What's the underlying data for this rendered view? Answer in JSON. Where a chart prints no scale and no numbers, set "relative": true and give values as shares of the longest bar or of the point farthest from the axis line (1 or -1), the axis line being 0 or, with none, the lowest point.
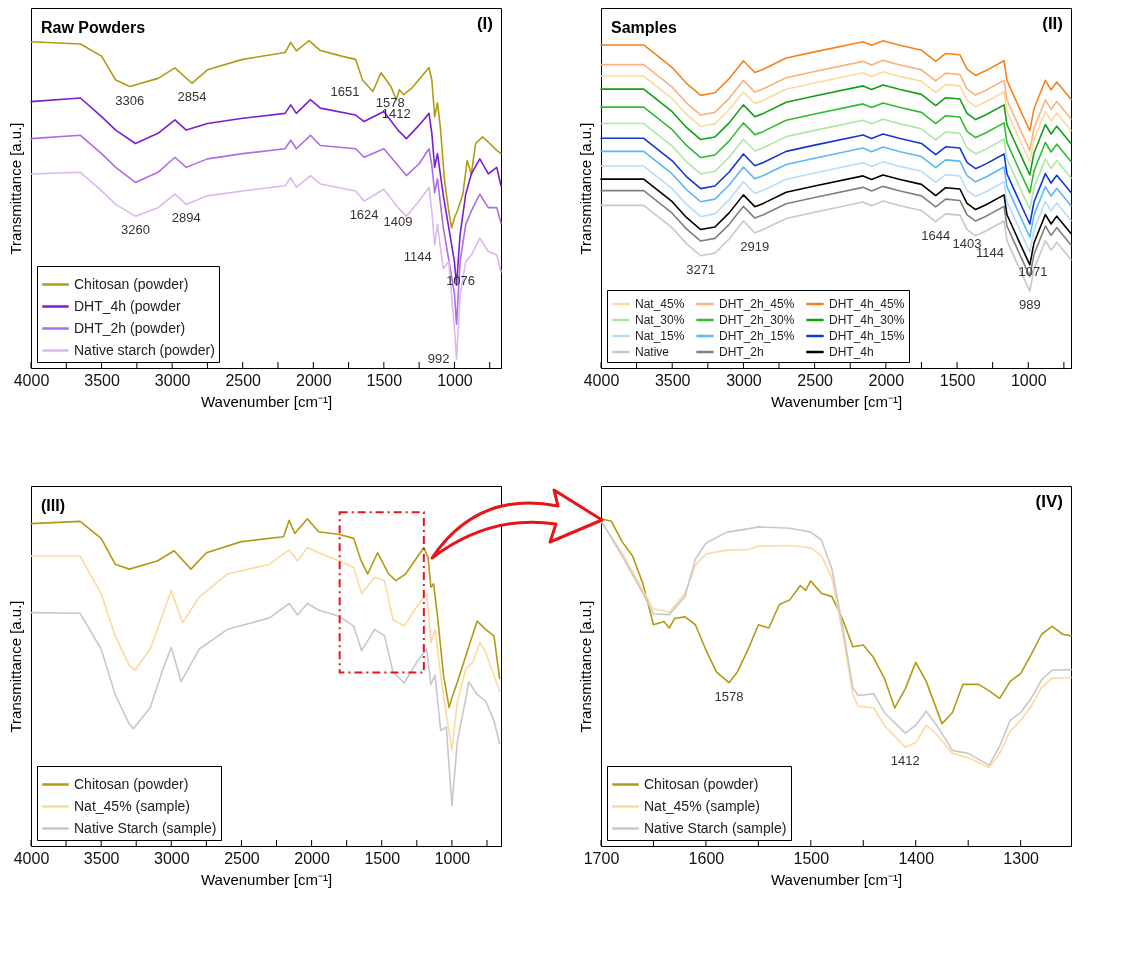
{
  "chart_data": [
    {
      "type": "line",
      "title": "Raw Powders",
      "xlabel": "Wavenumber [cm⁻¹]",
      "ylabel": "Transmittance [a.u.]",
      "relative": true,
      "legend": "bottom left",
      "line_style": "solid",
      "xlim": [
        4000,
        670
      ],
      "xticks": [
        4000,
        {
          "value": 3750,
          "label": null
        },
        3500,
        {
          "value": 3250,
          "label": null
        },
        3000,
        {
          "value": 2750,
          "label": null
        },
        2500,
        {
          "value": 2250,
          "label": null
        },
        2000,
        {
          "value": 1750,
          "label": null
        },
        1500,
        {
          "value": 1250,
          "label": null
        },
        1000,
        {
          "value": 750,
          "label": null
        }
      ],
      "annotations": [
        "(I)",
        {
          "text": "3306",
          "x": 3300,
          "y": 0.86
        },
        {
          "text": "2854",
          "x": 2860,
          "y": 0.87
        },
        {
          "text": "1651",
          "x": 1651,
          "y": 0.88
        },
        {
          "text": "1578",
          "x": 1578,
          "y": 0.845
        },
        {
          "text": "1412",
          "x": 1412,
          "y": 0.82
        },
        {
          "text": "3260",
          "x": 3260,
          "y": 0.464
        },
        {
          "text": "2894",
          "x": 2900,
          "y": 0.5
        },
        {
          "text": "1624",
          "x": 1640,
          "y": 0.51
        },
        {
          "text": "1409",
          "x": 1400,
          "y": 0.49
        },
        {
          "text": "1144",
          "x": 1140,
          "y": 0.376
        },
        {
          "text": "1076",
          "x": 1080,
          "y": 0.304
        },
        {
          "text": "992",
          "x": 985,
          "y": 0.026
        }
      ],
      "series": [
        {
          "name": "Chitosan (powder)",
          "color": "#b39a14",
          "x": [
            4000,
            3650,
            3500,
            3400,
            3300,
            3100,
            2980,
            2860,
            2750,
            2500,
            2200,
            2160,
            2120,
            2030,
            1950,
            1800,
            1700,
            1651,
            1578,
            1520,
            1450,
            1412,
            1390,
            1360,
            1300,
            1230,
            1180,
            1160,
            1140,
            1120,
            1100,
            1070,
            1040,
            1020,
            1000,
            980,
            940,
            910,
            880,
            850,
            800,
            750,
            700,
            670
          ],
          "values": [
            0.997,
            0.99,
            0.953,
            0.88,
            0.86,
            0.885,
            0.917,
            0.87,
            0.911,
            0.943,
            0.964,
            0.995,
            0.969,
            1.0,
            0.97,
            0.953,
            0.943,
            0.88,
            0.845,
            0.902,
            0.86,
            0.82,
            0.85,
            0.835,
            0.856,
            0.892,
            0.918,
            0.88,
            0.768,
            0.81,
            0.737,
            0.572,
            0.479,
            0.428,
            0.459,
            0.479,
            0.531,
            0.634,
            0.593,
            0.686,
            0.706,
            0.686,
            0.665,
            0.655
          ]
        },
        {
          "name": "DHT_4h (powder",
          "color": "#7a1fd0",
          "x": [
            4000,
            3650,
            3500,
            3400,
            3260,
            3100,
            2980,
            2900,
            2750,
            2500,
            2200,
            2160,
            2120,
            2020,
            1950,
            1700,
            1640,
            1500,
            1400,
            1340,
            1250,
            1180,
            1160,
            1140,
            1120,
            1080,
            1040,
            1000,
            985,
            960,
            920,
            880,
            820,
            760,
            700,
            670
          ],
          "values": [
            0.814,
            0.825,
            0.768,
            0.727,
            0.686,
            0.717,
            0.758,
            0.727,
            0.747,
            0.763,
            0.778,
            0.804,
            0.778,
            0.82,
            0.794,
            0.773,
            0.753,
            0.784,
            0.727,
            0.701,
            0.742,
            0.778,
            0.717,
            0.613,
            0.655,
            0.531,
            0.428,
            0.325,
            0.253,
            0.407,
            0.531,
            0.593,
            0.639,
            0.593,
            0.613,
            0.557
          ]
        },
        {
          "name": "DHT_2h (powder)",
          "color": "#b06be6",
          "x": [
            4000,
            3650,
            3500,
            3400,
            3260,
            3100,
            2980,
            2900,
            2750,
            2500,
            2200,
            2160,
            2120,
            2020,
            1950,
            1700,
            1640,
            1500,
            1400,
            1340,
            1250,
            1180,
            1160,
            1140,
            1120,
            1080,
            1040,
            1000,
            985,
            960,
            920,
            880,
            820,
            760,
            700,
            670
          ],
          "values": [
            0.701,
            0.711,
            0.655,
            0.613,
            0.567,
            0.598,
            0.644,
            0.613,
            0.639,
            0.655,
            0.67,
            0.696,
            0.67,
            0.711,
            0.68,
            0.67,
            0.644,
            0.67,
            0.619,
            0.588,
            0.624,
            0.67,
            0.619,
            0.536,
            0.578,
            0.433,
            0.33,
            0.227,
            0.134,
            0.325,
            0.438,
            0.48,
            0.531,
            0.49,
            0.49,
            0.443
          ]
        },
        {
          "name": "Native starch (powder)",
          "color": "#dcb8f2",
          "x": [
            4000,
            3650,
            3500,
            3400,
            3260,
            3100,
            2980,
            2900,
            2750,
            2500,
            2200,
            2160,
            2120,
            2020,
            1950,
            1700,
            1640,
            1500,
            1400,
            1340,
            1250,
            1180,
            1160,
            1140,
            1120,
            1080,
            1040,
            1000,
            985,
            960,
            920,
            880,
            820,
            760,
            700,
            670
          ],
          "values": [
            0.593,
            0.598,
            0.541,
            0.5,
            0.464,
            0.49,
            0.531,
            0.5,
            0.526,
            0.541,
            0.557,
            0.582,
            0.552,
            0.588,
            0.562,
            0.541,
            0.51,
            0.546,
            0.49,
            0.464,
            0.51,
            0.552,
            0.479,
            0.376,
            0.438,
            0.304,
            0.325,
            0.119,
            0.026,
            0.222,
            0.325,
            0.345,
            0.397,
            0.356,
            0.345,
            0.294
          ]
        }
      ]
    },
    {
      "type": "line",
      "title": "Samples",
      "xlabel": "Wavenumber [cm⁻¹]",
      "ylabel": "Transmittance [a.u.]",
      "relative": true,
      "legend": "bottom left",
      "line_style": "solid",
      "xlim": [
        4000,
        700
      ],
      "xticks": [
        4000,
        {
          "value": 3750,
          "label": null
        },
        3500,
        {
          "value": 3250,
          "label": null
        },
        3000,
        {
          "value": 2750,
          "label": null
        },
        2500,
        {
          "value": 2250,
          "label": null
        },
        2000,
        {
          "value": 1750,
          "label": null
        },
        1500,
        {
          "value": 1250,
          "label": null
        },
        1000,
        {
          "value": 750,
          "label": null
        }
      ],
      "annotations": [
        "(II)",
        {
          "text": "3271",
          "x": 3300,
          "y": 0.343
        },
        {
          "text": "2919",
          "x": 2920,
          "y": 0.413
        },
        {
          "text": "1644",
          "x": 1650,
          "y": 0.447
        },
        {
          "text": "1403",
          "x": 1430,
          "y": 0.423
        },
        {
          "text": "1144",
          "x": 1150,
          "y": 0.389
        },
        {
          "text": "1071",
          "x": 1090,
          "y": 0.331
        },
        {
          "text": "989",
          "x": 989,
          "y": 0.235
        }
      ],
      "x": [
        4000,
        3700,
        3500,
        3400,
        3300,
        3200,
        3100,
        3000,
        2920,
        2860,
        2700,
        2500,
        2160,
        2100,
        2020,
        1900,
        1750,
        1650,
        1580,
        1480,
        1430,
        1370,
        1300,
        1170,
        1150,
        1090,
        1040,
        989,
        960,
        880,
        840,
        800,
        700
      ],
      "series": [
        {
          "name": "Nat_45%",
          "color": "#fdd9a0",
          "values": [
            0.892,
            0.892,
            0.823,
            0.775,
            0.738,
            0.746,
            0.789,
            0.844,
            0.808,
            0.818,
            0.852,
            0.871,
            0.902,
            0.891,
            0.905,
            0.891,
            0.876,
            0.842,
            0.866,
            0.862,
            0.818,
            0.799,
            0.813,
            0.844,
            0.784,
            0.726,
            0.678,
            0.63,
            0.697,
            0.784,
            0.755,
            0.779,
            0.726
          ]
        },
        {
          "name": "DHT_2h_45%",
          "color": "#f9b27c",
          "values": [
            0.927,
            0.927,
            0.858,
            0.81,
            0.773,
            0.781,
            0.824,
            0.879,
            0.843,
            0.853,
            0.887,
            0.906,
            0.937,
            0.926,
            0.94,
            0.926,
            0.911,
            0.877,
            0.901,
            0.897,
            0.853,
            0.834,
            0.848,
            0.879,
            0.819,
            0.761,
            0.713,
            0.665,
            0.732,
            0.819,
            0.79,
            0.814,
            0.761
          ]
        },
        {
          "name": "DHT_4h_45%",
          "color": "#f7821b",
          "values": [
            0.987,
            0.987,
            0.918,
            0.87,
            0.833,
            0.841,
            0.884,
            0.939,
            0.903,
            0.913,
            0.947,
            0.966,
            0.997,
            0.986,
            1.0,
            0.986,
            0.971,
            0.937,
            0.961,
            0.957,
            0.913,
            0.894,
            0.908,
            0.939,
            0.879,
            0.821,
            0.773,
            0.725,
            0.792,
            0.879,
            0.85,
            0.874,
            0.821
          ]
        },
        {
          "name": "Nat_30%",
          "color": "#aee6a8",
          "values": [
            0.747,
            0.747,
            0.678,
            0.63,
            0.593,
            0.601,
            0.644,
            0.699,
            0.663,
            0.673,
            0.707,
            0.726,
            0.757,
            0.746,
            0.76,
            0.746,
            0.731,
            0.697,
            0.721,
            0.717,
            0.673,
            0.654,
            0.668,
            0.699,
            0.639,
            0.581,
            0.533,
            0.485,
            0.552,
            0.639,
            0.61,
            0.634,
            0.581
          ]
        },
        {
          "name": "DHT_2h_30%",
          "color": "#2ebd2e",
          "values": [
            0.797,
            0.797,
            0.728,
            0.68,
            0.643,
            0.651,
            0.694,
            0.749,
            0.713,
            0.723,
            0.757,
            0.776,
            0.807,
            0.796,
            0.81,
            0.796,
            0.781,
            0.747,
            0.771,
            0.767,
            0.723,
            0.704,
            0.718,
            0.749,
            0.689,
            0.631,
            0.583,
            0.535,
            0.602,
            0.689,
            0.66,
            0.684,
            0.631
          ]
        },
        {
          "name": "DHT_4h_30%",
          "color": "#12a012",
          "values": [
            0.852,
            0.852,
            0.783,
            0.735,
            0.698,
            0.706,
            0.749,
            0.804,
            0.768,
            0.778,
            0.812,
            0.831,
            0.862,
            0.851,
            0.865,
            0.851,
            0.836,
            0.802,
            0.826,
            0.822,
            0.778,
            0.759,
            0.773,
            0.804,
            0.744,
            0.686,
            0.638,
            0.59,
            0.657,
            0.744,
            0.715,
            0.739,
            0.686
          ]
        },
        {
          "name": "Nat_15%",
          "color": "#b8dcf8",
          "values": [
            0.617,
            0.617,
            0.548,
            0.5,
            0.463,
            0.471,
            0.514,
            0.569,
            0.533,
            0.543,
            0.577,
            0.596,
            0.627,
            0.616,
            0.63,
            0.616,
            0.601,
            0.567,
            0.591,
            0.587,
            0.543,
            0.524,
            0.538,
            0.569,
            0.509,
            0.451,
            0.403,
            0.355,
            0.422,
            0.509,
            0.48,
            0.504,
            0.451
          ]
        },
        {
          "name": "DHT_2h_15%",
          "color": "#5cb8f5",
          "values": [
            0.662,
            0.662,
            0.593,
            0.545,
            0.508,
            0.516,
            0.559,
            0.614,
            0.578,
            0.588,
            0.622,
            0.641,
            0.672,
            0.661,
            0.675,
            0.661,
            0.646,
            0.612,
            0.636,
            0.632,
            0.588,
            0.569,
            0.583,
            0.614,
            0.554,
            0.496,
            0.448,
            0.4,
            0.467,
            0.554,
            0.525,
            0.549,
            0.496
          ]
        },
        {
          "name": "DHT_4h_15%",
          "color": "#1438d4",
          "values": [
            0.702,
            0.702,
            0.633,
            0.585,
            0.548,
            0.556,
            0.599,
            0.654,
            0.618,
            0.628,
            0.662,
            0.681,
            0.712,
            0.701,
            0.715,
            0.701,
            0.686,
            0.652,
            0.676,
            0.672,
            0.628,
            0.609,
            0.623,
            0.654,
            0.594,
            0.536,
            0.488,
            0.44,
            0.507,
            0.594,
            0.565,
            0.589,
            0.536
          ]
        },
        {
          "name": "Native",
          "color": "#c8c8c8",
          "values": [
            0.497,
            0.497,
            0.428,
            0.38,
            0.343,
            0.351,
            0.394,
            0.449,
            0.413,
            0.423,
            0.457,
            0.476,
            0.507,
            0.496,
            0.51,
            0.496,
            0.481,
            0.447,
            0.471,
            0.467,
            0.423,
            0.404,
            0.418,
            0.449,
            0.389,
            0.331,
            0.283,
            0.235,
            0.302,
            0.389,
            0.36,
            0.384,
            0.331
          ]
        },
        {
          "name": "DHT_2h",
          "color": "#808080",
          "values": [
            0.542,
            0.542,
            0.473,
            0.425,
            0.388,
            0.396,
            0.439,
            0.494,
            0.458,
            0.468,
            0.502,
            0.521,
            0.552,
            0.541,
            0.555,
            0.541,
            0.526,
            0.492,
            0.516,
            0.512,
            0.468,
            0.449,
            0.463,
            0.494,
            0.434,
            0.376,
            0.328,
            0.28,
            0.347,
            0.434,
            0.405,
            0.429,
            0.376
          ]
        },
        {
          "name": "DHT_4h",
          "color": "#000000",
          "values": [
            0.577,
            0.577,
            0.508,
            0.46,
            0.423,
            0.431,
            0.474,
            0.529,
            0.493,
            0.503,
            0.537,
            0.556,
            0.587,
            0.576,
            0.59,
            0.576,
            0.561,
            0.527,
            0.551,
            0.547,
            0.503,
            0.484,
            0.498,
            0.529,
            0.469,
            0.411,
            0.363,
            0.315,
            0.382,
            0.469,
            0.44,
            0.464,
            0.411
          ]
        }
      ]
    },
    {
      "type": "line",
      "title": "(III)",
      "xlabel": "Wavenumber [cm⁻¹]",
      "ylabel": "Transmittance [a.u.]",
      "relative": true,
      "legend": "bottom left",
      "line_style": "solid",
      "xlim": [
        4000,
        650
      ],
      "xticks": [
        4000,
        {
          "value": 3750,
          "label": null
        },
        3500,
        {
          "value": 3250,
          "label": null
        },
        3000,
        {
          "value": 2750,
          "label": null
        },
        2500,
        {
          "value": 2250,
          "label": null
        },
        2000,
        {
          "value": 1750,
          "label": null
        },
        1500,
        {
          "value": 1250,
          "label": null
        },
        1000,
        {
          "value": 750,
          "label": null
        }
      ],
      "series": [
        {
          "name": "Chitosan (powder)",
          "color": "#b39a14",
          "x": [
            4000,
            3650,
            3500,
            3400,
            3300,
            3100,
            2980,
            2860,
            2750,
            2500,
            2200,
            2160,
            2120,
            2030,
            1950,
            1800,
            1700,
            1651,
            1600,
            1530,
            1450,
            1400,
            1330,
            1200,
            1170,
            1150,
            1130,
            1100,
            1060,
            1020,
            1000,
            960,
            900,
            870,
            820,
            760,
            700,
            660
          ],
          "values": [
            0.985,
            0.992,
            0.94,
            0.861,
            0.846,
            0.871,
            0.902,
            0.846,
            0.896,
            0.93,
            0.945,
            0.995,
            0.955,
            1.0,
            0.96,
            0.952,
            0.94,
            0.876,
            0.831,
            0.896,
            0.831,
            0.811,
            0.831,
            0.912,
            0.881,
            0.791,
            0.801,
            0.692,
            0.522,
            0.423,
            0.453,
            0.502,
            0.582,
            0.622,
            0.687,
            0.662,
            0.642,
            0.512
          ]
        },
        {
          "name": "Nat_45% (sample)",
          "color": "#fdd9a0",
          "x": [
            4000,
            3650,
            3500,
            3400,
            3300,
            3260,
            3150,
            3050,
            3000,
            2920,
            2800,
            2600,
            2300,
            2160,
            2100,
            2030,
            1950,
            1800,
            1700,
            1644,
            1550,
            1480,
            1420,
            1340,
            1250,
            1180,
            1150,
            1120,
            1080,
            1040,
            1000,
            960,
            900,
            850,
            800,
            760,
            700,
            660
          ],
          "values": [
            0.886,
            0.886,
            0.771,
            0.642,
            0.552,
            0.537,
            0.602,
            0.721,
            0.781,
            0.682,
            0.761,
            0.831,
            0.861,
            0.905,
            0.871,
            0.912,
            0.896,
            0.871,
            0.851,
            0.771,
            0.821,
            0.811,
            0.692,
            0.672,
            0.731,
            0.771,
            0.622,
            0.662,
            0.522,
            0.403,
            0.294,
            0.443,
            0.542,
            0.562,
            0.622,
            0.592,
            0.522,
            0.473
          ]
        },
        {
          "name": "Native Starch (sample)",
          "color": "#c8c8c8",
          "x": [
            4000,
            3650,
            3500,
            3400,
            3300,
            3270,
            3150,
            3050,
            3000,
            2930,
            2800,
            2600,
            2300,
            2160,
            2100,
            2030,
            1950,
            1800,
            1700,
            1644,
            1550,
            1480,
            1420,
            1340,
            1250,
            1180,
            1150,
            1120,
            1080,
            1040,
            1000,
            960,
            900,
            880,
            820,
            760,
            700,
            660
          ],
          "values": [
            0.713,
            0.711,
            0.602,
            0.463,
            0.373,
            0.358,
            0.423,
            0.552,
            0.607,
            0.502,
            0.602,
            0.662,
            0.697,
            0.741,
            0.706,
            0.741,
            0.721,
            0.701,
            0.672,
            0.597,
            0.662,
            0.642,
            0.532,
            0.498,
            0.562,
            0.602,
            0.493,
            0.522,
            0.353,
            0.363,
            0.124,
            0.323,
            0.453,
            0.502,
            0.463,
            0.443,
            0.383,
            0.313
          ]
        }
      ]
    },
    {
      "type": "line",
      "xlabel": "Wavenumber [cm⁻¹]",
      "ylabel": "Transmittance [a.u.]",
      "relative": true,
      "legend": "bottom left",
      "line_style": "solid",
      "xlim": [
        1700,
        1252
      ],
      "xticks": [
        1700,
        {
          "value": 1650,
          "label": null
        },
        1600,
        {
          "value": 1550,
          "label": null
        },
        1500,
        {
          "value": 1450,
          "label": null
        },
        1400,
        {
          "value": 1350,
          "label": null
        },
        1300
      ],
      "annotations": [
        "(IV)",
        {
          "text": "1578",
          "x": 1578,
          "y": 0.499
        },
        {
          "text": "1412",
          "x": 1410,
          "y": 0.302
        }
      ],
      "series": [
        {
          "name": "Chitosan (powder)",
          "color": "#b39a14",
          "x": [
            1700,
            1690,
            1680,
            1670,
            1660,
            1650,
            1640,
            1635,
            1630,
            1620,
            1610,
            1600,
            1590,
            1578,
            1570,
            1560,
            1550,
            1540,
            1530,
            1520,
            1510,
            1505,
            1500,
            1490,
            1480,
            1470,
            1460,
            1450,
            1440,
            1430,
            1420,
            1410,
            1400,
            1390,
            1375,
            1365,
            1355,
            1340,
            1330,
            1320,
            1310,
            1300,
            1290,
            1280,
            1270,
            1260,
            1252
          ],
          "values": [
            1.0,
            0.992,
            0.93,
            0.887,
            0.801,
            0.676,
            0.686,
            0.666,
            0.695,
            0.7,
            0.676,
            0.599,
            0.532,
            0.499,
            0.532,
            0.599,
            0.676,
            0.666,
            0.738,
            0.752,
            0.796,
            0.781,
            0.81,
            0.772,
            0.762,
            0.695,
            0.609,
            0.614,
            0.575,
            0.513,
            0.422,
            0.48,
            0.561,
            0.503,
            0.374,
            0.408,
            0.494,
            0.494,
            0.474,
            0.451,
            0.503,
            0.527,
            0.585,
            0.647,
            0.671,
            0.647,
            0.642
          ]
        },
        {
          "name": "Nat_45% (sample)",
          "color": "#fdd9a0",
          "x": [
            1700,
            1680,
            1660,
            1650,
            1640,
            1635,
            1620,
            1610,
            1600,
            1580,
            1560,
            1550,
            1520,
            1500,
            1490,
            1480,
            1470,
            1460,
            1455,
            1440,
            1430,
            1410,
            1400,
            1390,
            1380,
            1365,
            1350,
            1330,
            1320,
            1310,
            1300,
            1290,
            1280,
            1270,
            1252
          ],
          "values": [
            0.992,
            0.896,
            0.781,
            0.724,
            0.719,
            0.714,
            0.772,
            0.858,
            0.892,
            0.904,
            0.906,
            0.916,
            0.918,
            0.911,
            0.887,
            0.82,
            0.656,
            0.465,
            0.427,
            0.422,
            0.369,
            0.302,
            0.316,
            0.369,
            0.341,
            0.283,
            0.27,
            0.24,
            0.283,
            0.35,
            0.384,
            0.427,
            0.484,
            0.513,
            0.515
          ]
        },
        {
          "name": "Native Starch (sample)",
          "color": "#c8c8c8",
          "x": [
            1700,
            1680,
            1660,
            1650,
            1635,
            1620,
            1610,
            1600,
            1580,
            1560,
            1550,
            1520,
            1500,
            1490,
            1480,
            1470,
            1460,
            1455,
            1440,
            1430,
            1410,
            1400,
            1390,
            1380,
            1365,
            1350,
            1330,
            1320,
            1310,
            1300,
            1290,
            1280,
            1270,
            1252
          ],
          "values": [
            0.994,
            0.887,
            0.772,
            0.709,
            0.707,
            0.762,
            0.877,
            0.925,
            0.959,
            0.969,
            0.975,
            0.971,
            0.959,
            0.935,
            0.848,
            0.676,
            0.484,
            0.46,
            0.465,
            0.408,
            0.345,
            0.369,
            0.412,
            0.369,
            0.292,
            0.283,
            0.247,
            0.305,
            0.384,
            0.408,
            0.451,
            0.508,
            0.537,
            0.539
          ]
        }
      ]
    }
  ]
}
